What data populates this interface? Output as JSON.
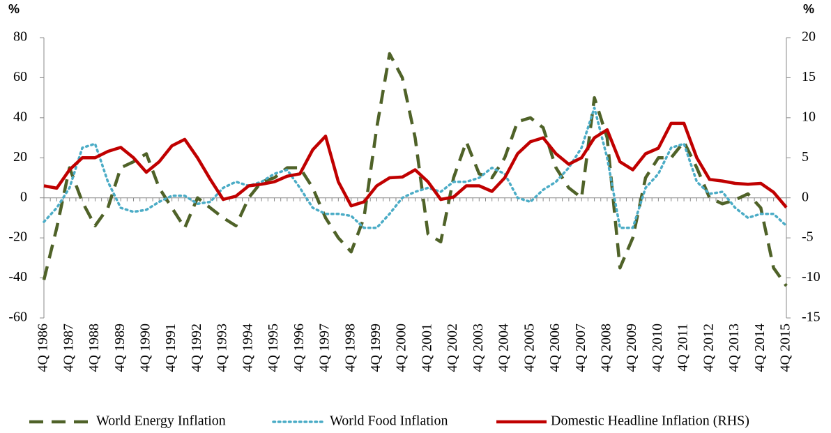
{
  "chart_data": {
    "type": "line",
    "y_label": "%",
    "y2_label": "%",
    "categories": [
      "4Q 1986",
      null,
      "4Q 1987",
      null,
      "4Q 1988",
      null,
      "4Q 1989",
      null,
      "4Q 1990",
      null,
      "4Q 1991",
      null,
      "4Q 1992",
      null,
      "4Q 1993",
      null,
      "4Q 1994",
      null,
      "4Q 1995",
      null,
      "4Q 1996",
      null,
      "4Q 1997",
      null,
      "4Q 1998",
      null,
      "4Q 1999",
      null,
      "4Q 2000",
      null,
      "4Q 2001",
      null,
      "4Q 2002",
      null,
      "4Q 2003",
      null,
      "4Q 2004",
      null,
      "4Q 2005",
      null,
      "4Q 2006",
      null,
      "4Q 2007",
      null,
      "4Q 2008",
      null,
      "4Q 2009",
      null,
      "4Q 2010",
      null,
      "4Q 2011",
      null,
      "4Q 2012",
      null,
      "4Q 2013",
      null,
      "4Q 2014",
      null,
      "4Q 2015"
    ],
    "series": [
      {
        "name": "World Energy Inflation",
        "color": "#4f6228",
        "style": "dashed",
        "values": [
          -41,
          -15,
          15,
          -2,
          -14,
          -5,
          15,
          18,
          22,
          5,
          -5,
          -15,
          0,
          -5,
          -10,
          -14,
          0,
          8,
          10,
          15,
          15,
          5,
          -10,
          -20,
          -27,
          -10,
          35,
          72,
          60,
          30,
          -18,
          -22,
          10,
          28,
          12,
          10,
          20,
          38,
          40,
          35,
          15,
          5,
          0,
          50,
          30,
          -35,
          -20,
          10,
          20,
          20,
          28,
          15,
          0,
          -3,
          -1,
          2,
          -5,
          -35,
          -44
        ]
      },
      {
        "name": "World Food Inflation",
        "color": "#4bacc6",
        "style": "dotted",
        "values": [
          -12,
          -5,
          5,
          25,
          27,
          8,
          -5,
          -7,
          -6,
          -2,
          1,
          1,
          -3,
          -2,
          5,
          8,
          6,
          8,
          12,
          14,
          5,
          -5,
          -8,
          -8,
          -9,
          -15,
          -15,
          -8,
          0,
          3,
          5,
          3,
          8,
          8,
          10,
          15,
          12,
          0,
          -2,
          4,
          8,
          15,
          25,
          45,
          20,
          -15,
          -15,
          5,
          12,
          25,
          27,
          8,
          2,
          3,
          -5,
          -10,
          -8,
          -8,
          -14
        ]
      },
      {
        "name": "Domestic Headline Inflation (RHS)",
        "color": "#c00000",
        "style": "solid",
        "axis": "y2",
        "values": [
          1.5,
          1.2,
          3.5,
          5,
          5,
          5.8,
          6.3,
          5,
          3.2,
          4.5,
          6.5,
          7.3,
          5,
          2.3,
          -0.2,
          0.2,
          1.5,
          1.7,
          2,
          2.7,
          3,
          6,
          7.7,
          2,
          -1,
          -0.5,
          1.5,
          2.5,
          2.6,
          3.5,
          2,
          -0.2,
          0.1,
          1.5,
          1.5,
          0.8,
          2.5,
          5.5,
          7,
          7.5,
          5.5,
          4.2,
          5,
          7.5,
          8.5,
          4.5,
          3.5,
          5.5,
          6.2,
          9.3,
          9.3,
          5,
          2.3,
          2.1,
          1.8,
          1.7,
          1.8,
          0.7,
          -1.2
        ]
      }
    ],
    "ylim": [
      -60,
      80
    ],
    "yticks": [
      -60,
      -40,
      -20,
      0,
      20,
      40,
      60,
      80
    ],
    "y2lim": [
      -15,
      20
    ],
    "y2ticks": [
      -15,
      -10,
      -5,
      0,
      5,
      10,
      15,
      20
    ],
    "legend": "bottom"
  }
}
